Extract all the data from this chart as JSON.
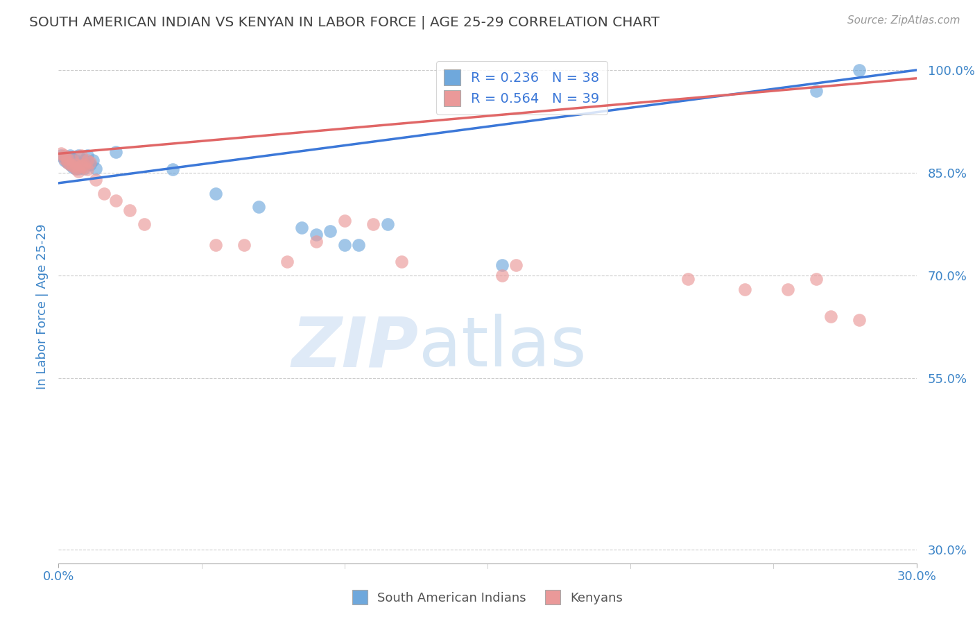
{
  "title": "SOUTH AMERICAN INDIAN VS KENYAN IN LABOR FORCE | AGE 25-29 CORRELATION CHART",
  "source": "Source: ZipAtlas.com",
  "ylabel": "In Labor Force | Age 25-29",
  "xmin": 0.0,
  "xmax": 0.3,
  "ymin": 0.28,
  "ymax": 1.03,
  "yticks": [
    0.3,
    0.55,
    0.7,
    0.85,
    1.0
  ],
  "ytick_labels": [
    "30.0%",
    "55.0%",
    "70.0%",
    "85.0%",
    "100.0%"
  ],
  "xtick_left_label": "0.0%",
  "xtick_right_label": "30.0%",
  "blue_color": "#6fa8dc",
  "pink_color": "#ea9999",
  "blue_line_color": "#3c78d8",
  "pink_line_color": "#e06666",
  "legend_blue_label": "R = 0.236   N = 38",
  "legend_pink_label": "R = 0.564   N = 39",
  "legend_label_blue": "South American Indians",
  "legend_label_pink": "Kenyans",
  "watermark_zip": "ZIP",
  "watermark_atlas": "atlas",
  "title_color": "#434343",
  "axis_label_color": "#3d85c8",
  "tick_color": "#3d85c8",
  "grid_color": "#cccccc",
  "blue_line_x": [
    0.0,
    0.3
  ],
  "blue_line_y": [
    0.835,
    1.0
  ],
  "pink_line_x": [
    0.0,
    0.3
  ],
  "pink_line_y": [
    0.878,
    0.988
  ],
  "blue_scatter_x": [
    0.001,
    0.002,
    0.002,
    0.003,
    0.003,
    0.004,
    0.004,
    0.004,
    0.005,
    0.005,
    0.005,
    0.006,
    0.006,
    0.006,
    0.007,
    0.007,
    0.007,
    0.008,
    0.008,
    0.009,
    0.009,
    0.01,
    0.011,
    0.012,
    0.013,
    0.02,
    0.04,
    0.055,
    0.07,
    0.085,
    0.09,
    0.095,
    0.1,
    0.105,
    0.115,
    0.155,
    0.265,
    0.28
  ],
  "blue_scatter_y": [
    0.875,
    0.872,
    0.868,
    0.87,
    0.865,
    0.872,
    0.862,
    0.875,
    0.868,
    0.862,
    0.858,
    0.86,
    0.868,
    0.856,
    0.862,
    0.856,
    0.875,
    0.858,
    0.863,
    0.856,
    0.868,
    0.875,
    0.862,
    0.868,
    0.856,
    0.88,
    0.855,
    0.82,
    0.8,
    0.77,
    0.76,
    0.765,
    0.745,
    0.745,
    0.775,
    0.715,
    0.97,
    1.0
  ],
  "pink_scatter_x": [
    0.001,
    0.002,
    0.002,
    0.003,
    0.003,
    0.004,
    0.005,
    0.005,
    0.006,
    0.006,
    0.007,
    0.007,
    0.008,
    0.008,
    0.009,
    0.009,
    0.01,
    0.01,
    0.011,
    0.013,
    0.016,
    0.02,
    0.025,
    0.03,
    0.055,
    0.065,
    0.08,
    0.09,
    0.1,
    0.11,
    0.12,
    0.155,
    0.16,
    0.22,
    0.24,
    0.255,
    0.265,
    0.27,
    0.28
  ],
  "pink_scatter_y": [
    0.878,
    0.875,
    0.87,
    0.865,
    0.87,
    0.862,
    0.86,
    0.868,
    0.862,
    0.856,
    0.858,
    0.852,
    0.86,
    0.875,
    0.858,
    0.862,
    0.868,
    0.855,
    0.865,
    0.84,
    0.82,
    0.81,
    0.795,
    0.775,
    0.745,
    0.745,
    0.72,
    0.75,
    0.78,
    0.775,
    0.72,
    0.7,
    0.715,
    0.695,
    0.68,
    0.68,
    0.695,
    0.64,
    0.635
  ]
}
